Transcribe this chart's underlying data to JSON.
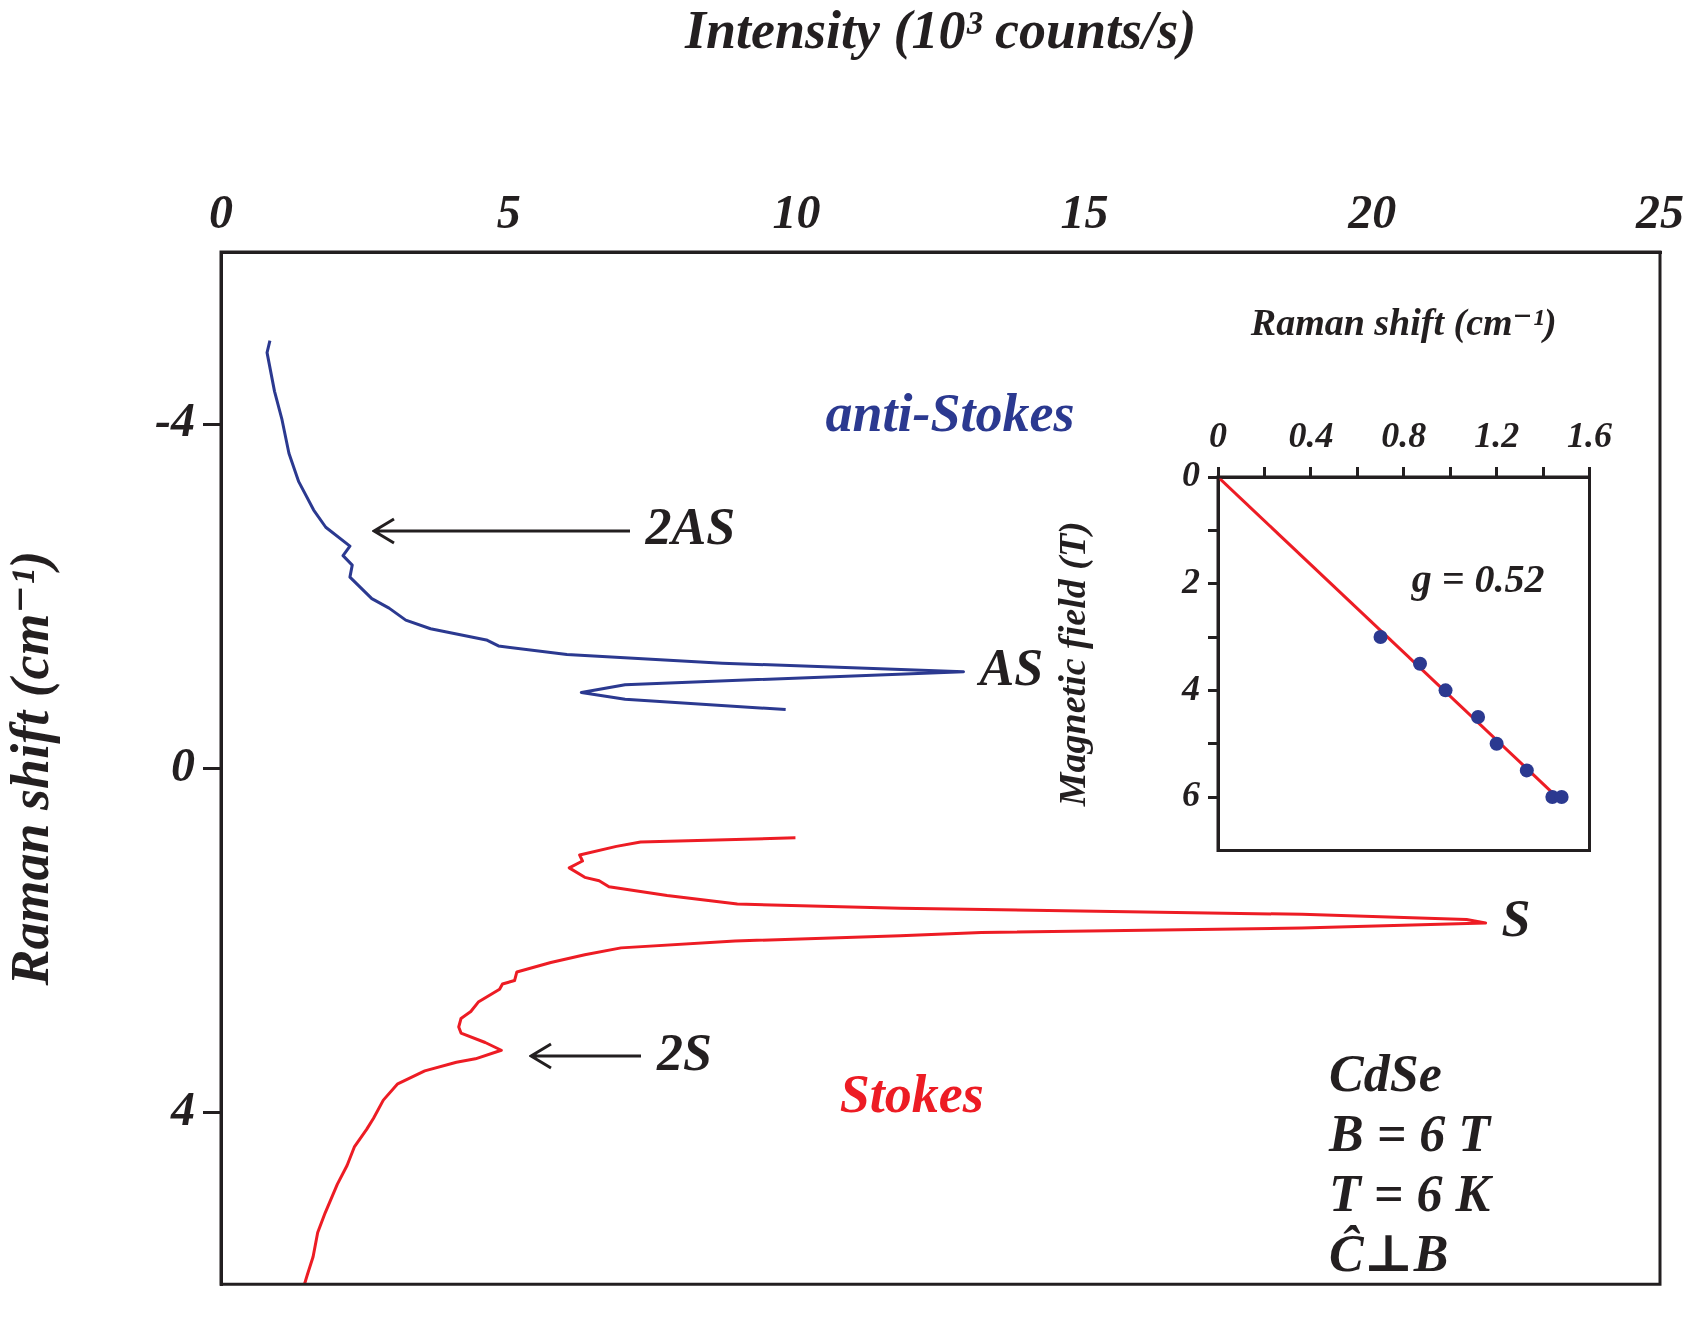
{
  "chart_data": [
    {
      "type": "line",
      "xlabel": "Intensity (10³ counts/s)",
      "ylabel": "Raman shift (cm⁻¹)",
      "xlim": [
        0,
        25
      ],
      "xticks": [
        0,
        5,
        10,
        15,
        20,
        25
      ],
      "ylim": [
        6,
        -6
      ],
      "yticks": [
        -4,
        0,
        4
      ],
      "grid": false,
      "legend": false,
      "series": [
        {
          "name": "anti-Stokes",
          "color": "#2b3990",
          "x": [
            0.85,
            0.8,
            0.93,
            1.06,
            1.18,
            1.35,
            1.61,
            1.82,
            2.24,
            2.12,
            2.28,
            2.24,
            2.62,
            2.92,
            3.21,
            3.64,
            4.61,
            4.82,
            6.01,
            8.71,
            12.9,
            7.02,
            6.26,
            7.02,
            9.81
          ],
          "values": [
            -4.97,
            -4.83,
            -4.38,
            -4.05,
            -3.66,
            -3.33,
            -3.0,
            -2.8,
            -2.58,
            -2.47,
            -2.36,
            -2.22,
            -1.97,
            -1.86,
            -1.72,
            -1.62,
            -1.49,
            -1.42,
            -1.32,
            -1.22,
            -1.12,
            -0.97,
            -0.88,
            -0.8,
            -0.68
          ]
        },
        {
          "name": "Stokes",
          "color": "#ed1c24",
          "x": [
            9.98,
            7.29,
            6.87,
            6.23,
            6.28,
            6.05,
            6.32,
            6.57,
            6.74,
            7.75,
            8.97,
            11.8,
            18.78,
            21.64,
            21.97,
            18.78,
            13.21,
            11.8,
            8.93,
            6.95,
            6.32,
            5.73,
            5.14,
            5.1,
            4.89,
            4.84,
            4.47,
            4.34,
            4.17,
            4.13,
            4.17,
            4.59,
            4.87,
            4.42,
            4.09,
            3.54,
            3.07,
            2.82,
            2.65,
            2.53,
            2.32,
            2.19,
            2.02,
            1.81,
            1.68,
            1.6,
            1.5,
            1.45
          ],
          "values": [
            0.81,
            0.86,
            0.91,
            1.01,
            1.08,
            1.16,
            1.27,
            1.31,
            1.38,
            1.48,
            1.58,
            1.63,
            1.7,
            1.76,
            1.8,
            1.86,
            1.91,
            1.95,
            2.01,
            2.09,
            2.17,
            2.26,
            2.37,
            2.47,
            2.51,
            2.57,
            2.72,
            2.83,
            2.91,
            3.01,
            3.08,
            3.19,
            3.28,
            3.38,
            3.42,
            3.52,
            3.67,
            3.86,
            4.07,
            4.2,
            4.4,
            4.62,
            4.84,
            5.17,
            5.4,
            5.68,
            5.89,
            6.0
          ]
        }
      ],
      "annotations": [
        {
          "text": "AS",
          "x": 12.9,
          "y": -1.12
        },
        {
          "text": "S",
          "x": 21.97,
          "y": 1.8
        },
        "2AS",
        "2S",
        "CdSe",
        "B = 6 T",
        "T = 6 K",
        "Ĉ⊥B"
      ]
    },
    {
      "type": "scatter",
      "xlabel": "Raman shift (cm⁻¹)",
      "ylabel": "Magnetic field (T)",
      "xlim": [
        0,
        1.6
      ],
      "xticks": [
        0,
        {
          "value": 0.2,
          "label": null
        },
        0.4,
        {
          "value": 0.6,
          "label": null
        },
        0.8,
        {
          "value": 1,
          "label": null
        },
        1.2,
        {
          "value": 1.4,
          "label": null
        },
        1.6
      ],
      "ylim": [
        7,
        0
      ],
      "yticks": [
        0,
        {
          "value": 1,
          "label": null
        },
        2,
        {
          "value": 3,
          "label": null
        },
        4,
        {
          "value": 5,
          "label": null
        },
        6
      ],
      "grid": false,
      "legend": false,
      "series": [
        {
          "color": "#2b3990",
          "marker": "circle",
          "x": [
            0.7,
            0.87,
            0.98,
            1.12,
            1.2,
            1.33,
            1.44,
            1.48
          ],
          "values": [
            3,
            3.5,
            4,
            4.5,
            5,
            5.5,
            6,
            6
          ]
        },
        {
          "type": "line",
          "color": "#ed1c24",
          "x": [
            0,
            1.46
          ],
          "values": [
            0,
            6
          ]
        }
      ],
      "annotations": [
        "g = 0.52"
      ]
    }
  ]
}
